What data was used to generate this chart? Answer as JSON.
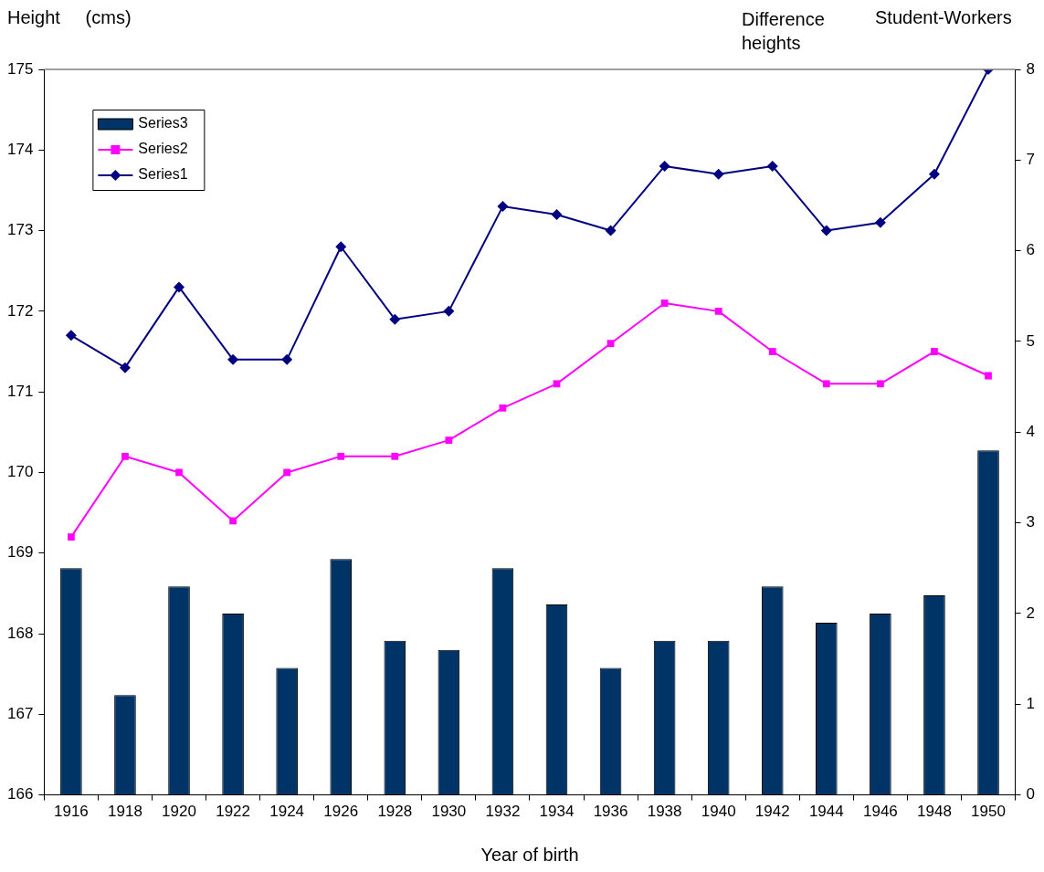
{
  "chart_data": {
    "type": "line",
    "ylabel": "Height     (cms)",
    "y2label": "Difference heights",
    "annotations": [
      "Student-Workers"
    ],
    "xlabel": "Year of birth",
    "categories": [
      "1916",
      "1918",
      "1920",
      "1922",
      "1924",
      "1926",
      "1928",
      "1930",
      "1932",
      "1934",
      "1936",
      "1938",
      "1940",
      "1942",
      "1944",
      "1946",
      "1948",
      "1950"
    ],
    "series": [
      {
        "name": "Series3",
        "type": "bar",
        "axis": "y2",
        "color": "#003366",
        "values": [
          2.5,
          1.1,
          2.3,
          2.0,
          1.4,
          2.6,
          1.7,
          1.6,
          2.5,
          2.1,
          1.4,
          1.7,
          1.7,
          2.3,
          1.9,
          2.0,
          2.2,
          3.8
        ]
      },
      {
        "name": "Series2",
        "color": "#ff00ff",
        "marker": "square",
        "values": [
          169.2,
          170.2,
          170.0,
          169.4,
          170.0,
          170.2,
          170.2,
          170.4,
          170.8,
          171.1,
          171.6,
          172.1,
          172.0,
          171.5,
          171.1,
          171.1,
          171.5,
          171.2
        ]
      },
      {
        "name": "Series1",
        "color": "#000080",
        "marker": "diamond",
        "values": [
          171.7,
          171.3,
          172.3,
          171.4,
          171.4,
          172.8,
          171.9,
          172.0,
          173.3,
          173.2,
          173.0,
          173.8,
          173.7,
          173.8,
          173.0,
          173.1,
          173.7,
          175.0
        ]
      }
    ],
    "ylim": [
      166,
      175
    ],
    "yticks": [
      166,
      167,
      168,
      169,
      170,
      171,
      172,
      173,
      174,
      175
    ],
    "y2lim": [
      0,
      8
    ],
    "y2ticks": [
      0,
      1,
      2,
      3,
      4,
      5,
      6,
      7,
      8
    ],
    "grid": false,
    "legend": "top left"
  }
}
